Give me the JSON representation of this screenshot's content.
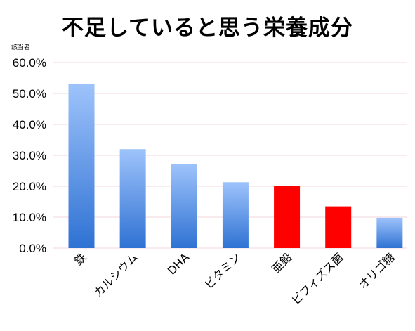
{
  "chart_data": {
    "type": "bar",
    "title": "不足していると思う栄養成分",
    "ylabel": "該当者",
    "xlabel": "",
    "categories": [
      "鉄",
      "カルシウム",
      "DHA",
      "ビタミン",
      "亜鉛",
      "ビフィズス菌",
      "オリゴ糖"
    ],
    "values": [
      53.0,
      32.0,
      27.2,
      21.3,
      20.2,
      13.5,
      9.8
    ],
    "ylim": [
      0,
      60
    ],
    "y_ticks": [
      "0.0%",
      "10.0%",
      "20.0%",
      "30.0%",
      "40.0%",
      "50.0%",
      "60.0%"
    ],
    "grid": true,
    "bar_colors": [
      "gradient-blue",
      "gradient-blue",
      "gradient-blue",
      "gradient-blue",
      "#ff0000",
      "#ff0000",
      "gradient-blue"
    ],
    "colors": {
      "blue_top": "#9ec3fb",
      "blue_bottom": "#2f72d3",
      "highlight": "#ff0000",
      "grid": "#f3d6dc"
    }
  }
}
